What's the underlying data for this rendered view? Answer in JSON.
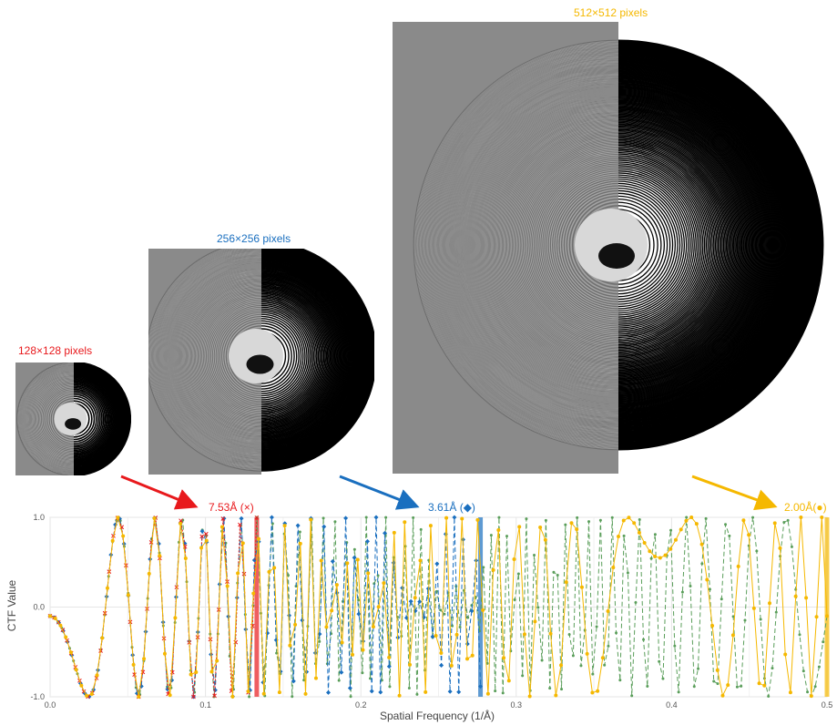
{
  "panels": [
    {
      "id": "p128",
      "title": "128×128 pixels",
      "color": "#e8191c"
    },
    {
      "id": "p256",
      "title": "256×256 pixels",
      "color": "#1a6fbf"
    },
    {
      "id": "p512",
      "title": "512×512 pixels",
      "color": "#f5b800"
    }
  ],
  "resolutions": [
    {
      "label": "7.53Å (×)",
      "color": "#e8191c",
      "frequency": 0.133
    },
    {
      "label": "3.61Å (◆)",
      "color": "#1a6fbf",
      "frequency": 0.277
    },
    {
      "label": "2.00Å(●)",
      "color": "#f5b800",
      "frequency": 0.5
    }
  ],
  "chart_data": {
    "type": "line",
    "xlabel": "Spatial Frequency (1/Å)",
    "ylabel": "CTF Value",
    "xlim": [
      0.0,
      0.5
    ],
    "ylim": [
      -1.0,
      1.0
    ],
    "xticks": [
      "0.0",
      "0.1",
      "0.2",
      "0.3",
      "0.4",
      "0.5"
    ],
    "yticks": [
      "-1.0",
      "0.0",
      "1.0"
    ],
    "grid": true,
    "series": [
      {
        "marker": "star",
        "color": "#5a9e5a",
        "style": "dashed",
        "sampling_max": 0.5,
        "n_points": 200
      },
      {
        "marker": "diamond",
        "color": "#1a6fbf",
        "style": "dashed",
        "sampling_max": 0.277,
        "n_points": 100
      },
      {
        "marker": "cross",
        "color": "#e8191c",
        "style": "dotted",
        "sampling_max": 0.133,
        "n_points": 50
      },
      {
        "marker": "circle",
        "color": "#f5b800",
        "style": "solid",
        "sampling_max": 0.5,
        "n_points": 150
      }
    ]
  }
}
